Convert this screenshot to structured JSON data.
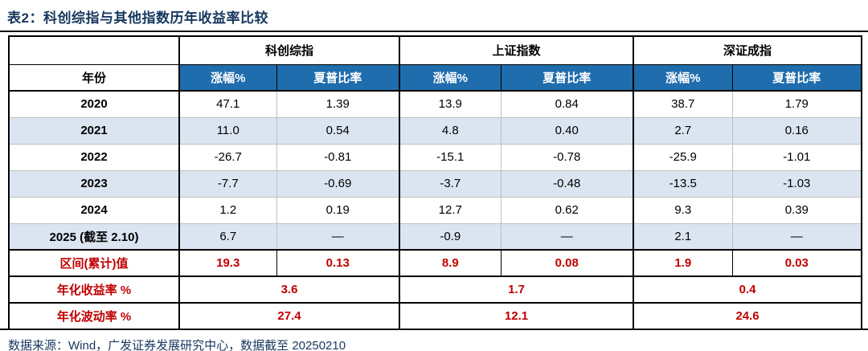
{
  "title": "表2：科创综指与其他指数历年收益率比较",
  "table": {
    "year_header": "年份",
    "groups": [
      {
        "name": "科创综指",
        "sub": [
          "涨幅%",
          "夏普比率"
        ]
      },
      {
        "name": "上证指数",
        "sub": [
          "涨幅%",
          "夏普比率"
        ]
      },
      {
        "name": "深证成指",
        "sub": [
          "涨幅%",
          "夏普比率"
        ]
      }
    ],
    "rows": [
      {
        "year": "2020",
        "values": [
          "47.1",
          "1.39",
          "13.9",
          "0.84",
          "38.7",
          "1.79"
        ]
      },
      {
        "year": "2021",
        "values": [
          "11.0",
          "0.54",
          "4.8",
          "0.40",
          "2.7",
          "0.16"
        ]
      },
      {
        "year": "2022",
        "values": [
          "-26.7",
          "-0.81",
          "-15.1",
          "-0.78",
          "-25.9",
          "-1.01"
        ]
      },
      {
        "year": "2023",
        "values": [
          "-7.7",
          "-0.69",
          "-3.7",
          "-0.48",
          "-13.5",
          "-1.03"
        ]
      },
      {
        "year": "2024",
        "values": [
          "1.2",
          "0.19",
          "12.7",
          "0.62",
          "9.3",
          "0.39"
        ]
      },
      {
        "year": "2025 (截至 2.10)",
        "values": [
          "6.7",
          "—",
          "-0.9",
          "—",
          "2.1",
          "—"
        ]
      }
    ],
    "summary_rows": [
      {
        "label": "区间(累计)值",
        "span": false,
        "values": [
          "19.3",
          "0.13",
          "8.9",
          "0.08",
          "1.9",
          "0.03"
        ]
      },
      {
        "label": "年化收益率 %",
        "span": true,
        "values": [
          "3.6",
          "1.7",
          "0.4"
        ]
      },
      {
        "label": "年化波动率 %",
        "span": true,
        "values": [
          "27.4",
          "12.1",
          "24.6"
        ]
      }
    ]
  },
  "footer": "数据来源：Wind，广发证券发展研究中心，数据截至 20250210",
  "colors": {
    "header_blue": "#1F6DAD",
    "row_alt": "#DBE5F1",
    "summary_red": "#C00000",
    "navy": "#17375E"
  }
}
